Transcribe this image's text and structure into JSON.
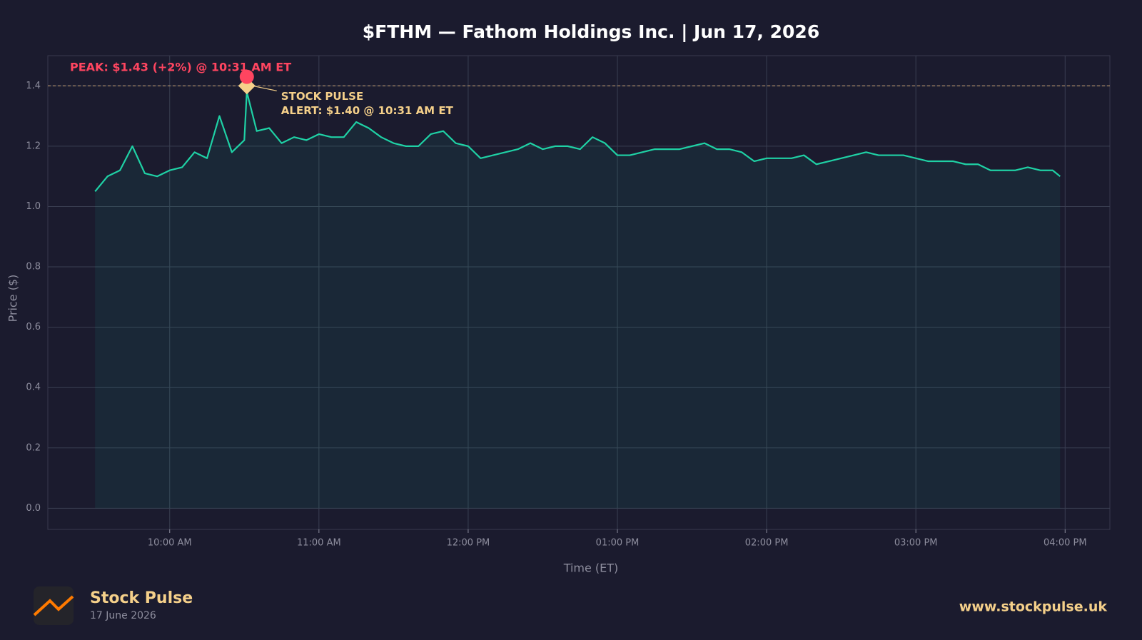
{
  "chart_data": {
    "type": "line",
    "title": "$FTHM — Fathom Holdings Inc.  |  Jun 17, 2026",
    "x_label": "Time (ET)",
    "y_label": "Price ($)",
    "x": [
      "09:30 AM",
      "09:35 AM",
      "09:40 AM",
      "09:45 AM",
      "09:50 AM",
      "09:55 AM",
      "10:00 AM",
      "10:05 AM",
      "10:10 AM",
      "10:15 AM",
      "10:20 AM",
      "10:25 AM",
      "10:30 AM",
      "10:31 AM",
      "10:35 AM",
      "10:40 AM",
      "10:45 AM",
      "10:50 AM",
      "10:55 AM",
      "11:00 AM",
      "11:05 AM",
      "11:10 AM",
      "11:15 AM",
      "11:20 AM",
      "11:25 AM",
      "11:30 AM",
      "11:35 AM",
      "11:40 AM",
      "11:45 AM",
      "11:50 AM",
      "11:55 AM",
      "12:00 PM",
      "12:05 PM",
      "12:10 PM",
      "12:15 PM",
      "12:20 PM",
      "12:25 PM",
      "12:30 PM",
      "12:35 PM",
      "12:40 PM",
      "12:45 PM",
      "12:50 PM",
      "12:55 PM",
      "01:00 PM",
      "01:05 PM",
      "01:10 PM",
      "01:15 PM",
      "01:20 PM",
      "01:25 PM",
      "01:30 PM",
      "01:35 PM",
      "01:40 PM",
      "01:45 PM",
      "01:50 PM",
      "01:55 PM",
      "02:00 PM",
      "02:05 PM",
      "02:10 PM",
      "02:15 PM",
      "02:20 PM",
      "02:25 PM",
      "02:30 PM",
      "02:35 PM",
      "02:40 PM",
      "02:45 PM",
      "02:50 PM",
      "02:55 PM",
      "03:00 PM",
      "03:05 PM",
      "03:10 PM",
      "03:15 PM",
      "03:20 PM",
      "03:25 PM",
      "03:30 PM",
      "03:35 PM",
      "03:40 PM",
      "03:45 PM",
      "03:50 PM",
      "03:55 PM",
      "03:58 PM"
    ],
    "series": [
      {
        "name": "FTHM",
        "color": "#1fd1a5",
        "values": [
          1.05,
          1.1,
          1.12,
          1.2,
          1.11,
          1.1,
          1.12,
          1.13,
          1.18,
          1.16,
          1.3,
          1.18,
          1.22,
          1.38,
          1.25,
          1.26,
          1.21,
          1.23,
          1.22,
          1.24,
          1.23,
          1.23,
          1.28,
          1.26,
          1.23,
          1.21,
          1.2,
          1.2,
          1.24,
          1.25,
          1.21,
          1.2,
          1.16,
          1.17,
          1.18,
          1.19,
          1.21,
          1.19,
          1.2,
          1.2,
          1.19,
          1.23,
          1.21,
          1.17,
          1.17,
          1.18,
          1.19,
          1.19,
          1.19,
          1.2,
          1.21,
          1.19,
          1.19,
          1.18,
          1.15,
          1.16,
          1.16,
          1.16,
          1.17,
          1.14,
          1.15,
          1.16,
          1.17,
          1.18,
          1.17,
          1.17,
          1.17,
          1.16,
          1.15,
          1.15,
          1.15,
          1.14,
          1.14,
          1.12,
          1.12,
          1.12,
          1.13,
          1.12,
          1.12,
          1.1
        ]
      }
    ],
    "xlim": [
      "09:11 AM",
      "04:18 PM"
    ],
    "xticks": [
      "10:00 AM",
      "11:00 AM",
      "12:00 PM",
      "01:00 PM",
      "02:00 PM",
      "03:00 PM",
      "04:00 PM"
    ],
    "ylim": [
      -0.07,
      1.5
    ],
    "yticks": [
      {
        "value": 0,
        "label": "0.0"
      },
      0.2,
      0.4,
      0.6,
      0.8,
      {
        "value": 1,
        "label": "1.0"
      },
      1.2,
      1.4
    ],
    "grid": true,
    "peak": {
      "label": "PEAK: $1.43 (+2%) @ 10:31 AM ET",
      "x": "10:31 AM",
      "value": 1.43,
      "color": "#ff4560"
    },
    "alert": {
      "label": [
        "STOCK PULSE",
        "ALERT: $1.40 @ 10:31 AM ET"
      ],
      "x": "10:31 AM",
      "value": 1.4,
      "color": "#f5d08a"
    }
  },
  "footer": {
    "brand": "Stock Pulse",
    "date": "17 June 2026",
    "url": "www.stockpulse.uk"
  }
}
